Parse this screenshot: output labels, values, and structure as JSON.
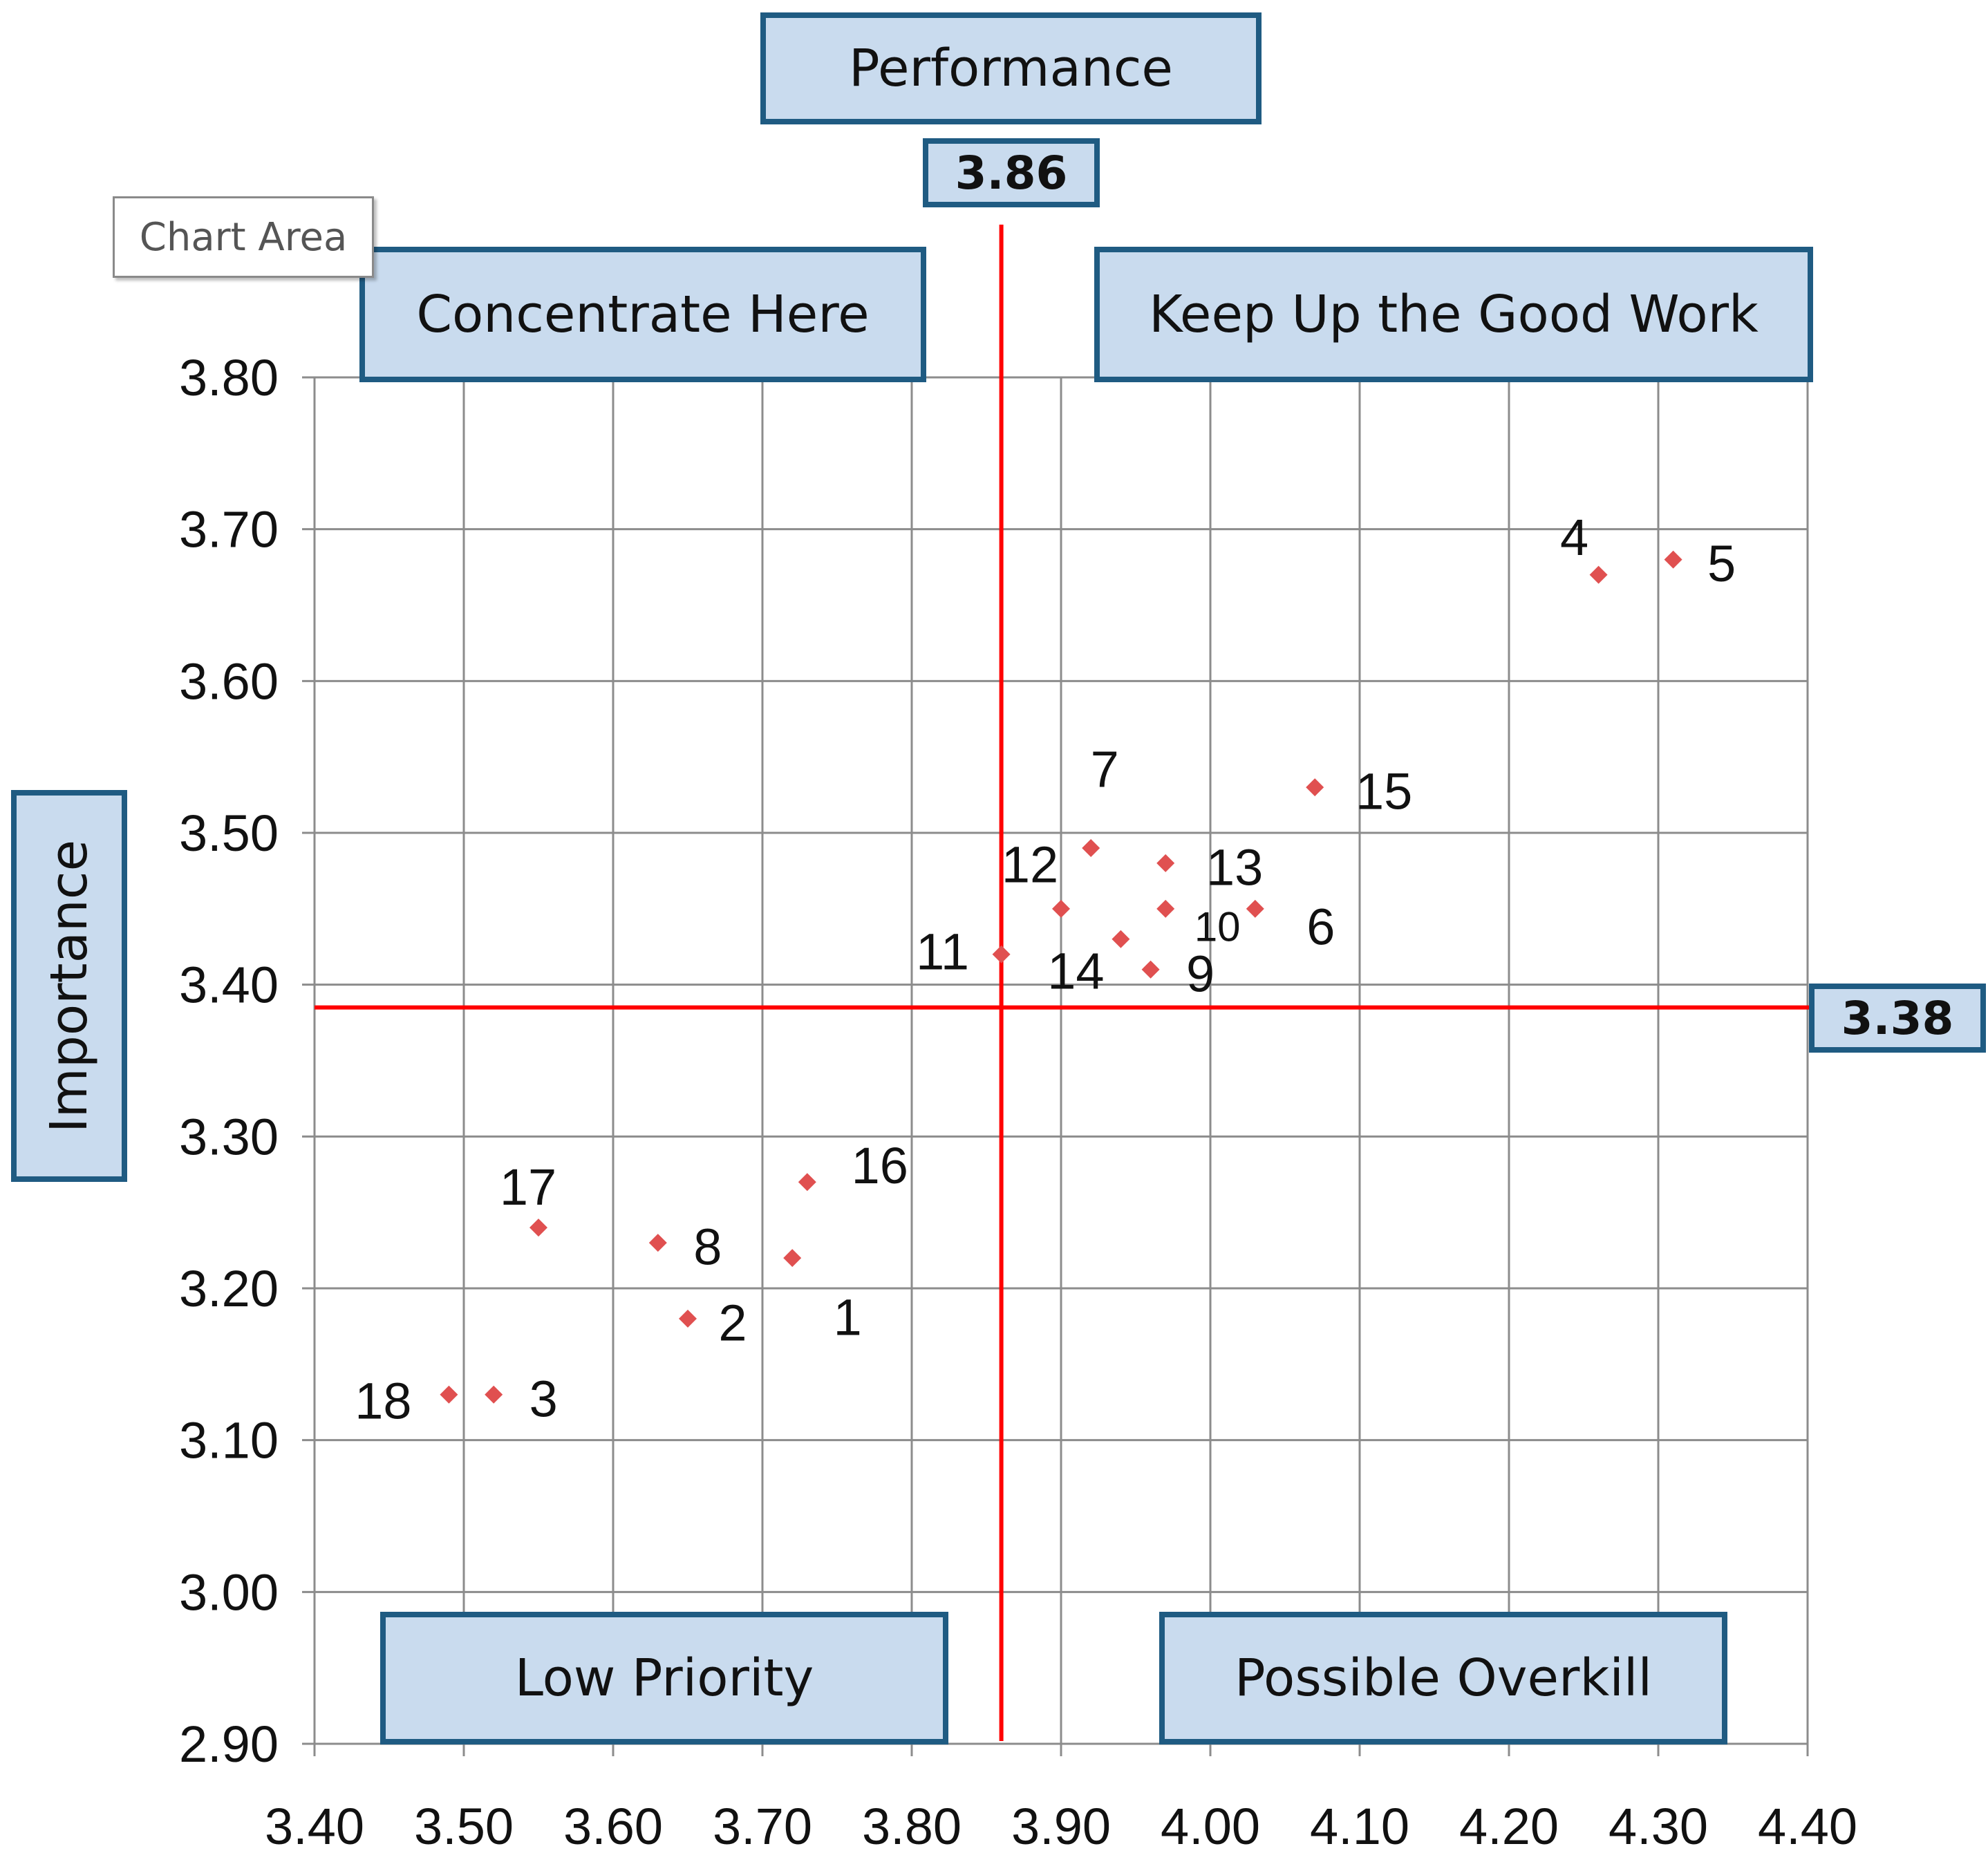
{
  "chart_data": {
    "type": "scatter",
    "title": "Performance",
    "xlabel": "Performance",
    "ylabel": "Importance",
    "xlim": [
      3.4,
      4.4
    ],
    "ylim": [
      2.9,
      3.8
    ],
    "x_ticks": [
      "3.40",
      "3.50",
      "3.60",
      "3.70",
      "3.80",
      "3.90",
      "4.00",
      "4.10",
      "4.20",
      "4.30",
      "4.40"
    ],
    "y_ticks": [
      "3.80",
      "3.70",
      "3.60",
      "3.50",
      "3.40",
      "3.30",
      "3.20",
      "3.10",
      "3.00",
      "2.90"
    ],
    "grid": true,
    "mean_x": 3.86,
    "mean_x_label": "3.86",
    "mean_y": 3.385,
    "mean_y_label": "3.38",
    "point_color": "#e05050",
    "line_color": "#ff0000",
    "quadrants": {
      "top_left": "Concentrate Here",
      "top_right": "Keep Up the Good Work",
      "bottom_left": "Low Priority",
      "bottom_right": "Possible Overkill"
    },
    "points": [
      {
        "label": "1",
        "x": 3.72,
        "y": 3.22
      },
      {
        "label": "2",
        "x": 3.65,
        "y": 3.18
      },
      {
        "label": "3",
        "x": 3.52,
        "y": 3.13
      },
      {
        "label": "4",
        "x": 4.26,
        "y": 3.67
      },
      {
        "label": "5",
        "x": 4.31,
        "y": 3.68
      },
      {
        "label": "6",
        "x": 4.03,
        "y": 3.45
      },
      {
        "label": "7",
        "x": 3.92,
        "y": 3.49
      },
      {
        "label": "8",
        "x": 3.63,
        "y": 3.23
      },
      {
        "label": "9",
        "x": 3.96,
        "y": 3.41
      },
      {
        "label": "10",
        "x": 3.97,
        "y": 3.45
      },
      {
        "label": "11",
        "x": 3.86,
        "y": 3.42
      },
      {
        "label": "12",
        "x": 3.9,
        "y": 3.45
      },
      {
        "label": "13",
        "x": 3.97,
        "y": 3.48
      },
      {
        "label": "14",
        "x": 3.94,
        "y": 3.43
      },
      {
        "label": "15",
        "x": 4.07,
        "y": 3.53
      },
      {
        "label": "16",
        "x": 3.73,
        "y": 3.27
      },
      {
        "label": "17",
        "x": 3.55,
        "y": 3.24
      },
      {
        "label": "18",
        "x": 3.49,
        "y": 3.13
      }
    ]
  },
  "tooltip": "Chart Area"
}
